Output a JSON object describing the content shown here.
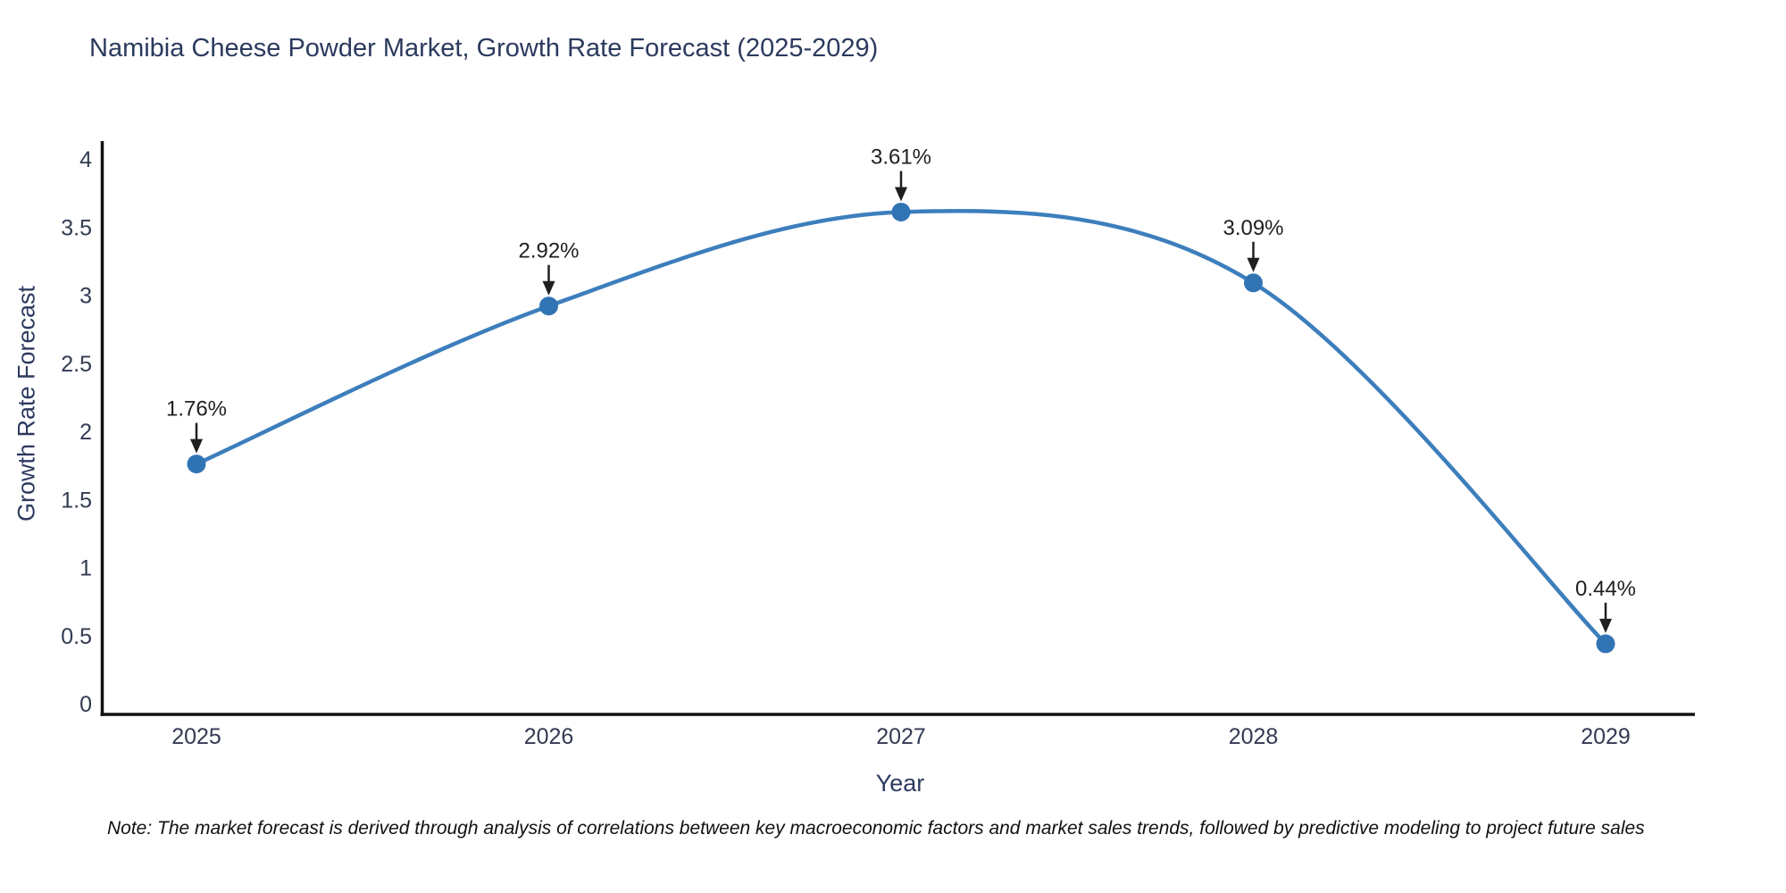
{
  "chart_data": {
    "type": "line",
    "title": "Namibia Cheese Powder Market, Growth Rate Forecast (2025-2029)",
    "xlabel": "Year",
    "ylabel": "Growth Rate Forecast",
    "categories": [
      "2025",
      "2026",
      "2027",
      "2028",
      "2029"
    ],
    "values": [
      1.76,
      2.92,
      3.61,
      3.09,
      0.44
    ],
    "point_labels": [
      "1.76%",
      "2.92%",
      "3.61%",
      "3.09%",
      "0.44%"
    ],
    "yticks": [
      "0",
      "0.5",
      "1",
      "1.5",
      "2",
      "2.5",
      "3",
      "3.5",
      "4"
    ],
    "ylim": [
      0,
      4.2
    ],
    "grid": false,
    "legend": false,
    "curve": "spline",
    "line_color": "#3d7ebc",
    "marker_color": "#3174b4",
    "axis_color": "#111111",
    "tick_label_color": "#333a52",
    "annotation_color": "#1f1f1f",
    "title_color": "#2c3a5e"
  },
  "note": "Note: The market forecast is derived through analysis of correlations between key macroeconomic factors and market sales trends, followed by predictive modeling to project future sales"
}
